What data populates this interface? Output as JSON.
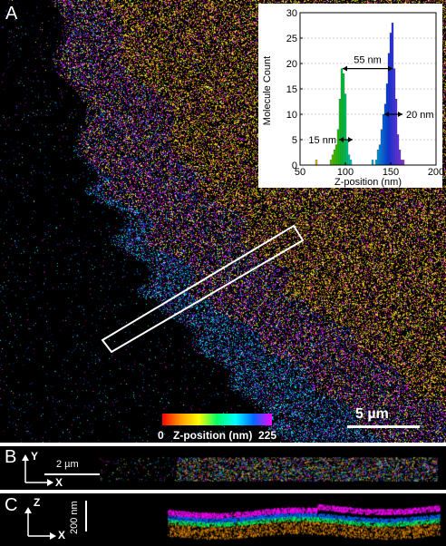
{
  "panels": {
    "a": {
      "label": "A",
      "scale_bar": "5 µm"
    },
    "b": {
      "label": "B",
      "axis_y": "Y",
      "axis_x": "X",
      "scale_bar": "2 µm"
    },
    "c": {
      "label": "C",
      "axis_z": "Z",
      "axis_x": "X",
      "scale_bar": "200 nm"
    }
  },
  "colorbar": {
    "min_label": "0",
    "title": "Z-position (nm)",
    "max_label": "225",
    "colors": [
      "#ff0000",
      "#ff9900",
      "#ffff00",
      "#00ff66",
      "#00ffff",
      "#0066ff",
      "#ff00ff"
    ]
  },
  "chart_data": {
    "type": "histogram",
    "xlabel": "Z-position (nm)",
    "ylabel": "Molecule Count",
    "xlim": [
      50,
      200
    ],
    "ylim": [
      0,
      30
    ],
    "xticks": [
      50,
      100,
      150,
      200
    ],
    "yticks": [
      0,
      5,
      10,
      15,
      20,
      25,
      30
    ],
    "bins": [
      {
        "x": 68,
        "value": 1,
        "color": "#e6b800"
      },
      {
        "x": 84,
        "value": 1,
        "color": "#66cc00"
      },
      {
        "x": 86,
        "value": 2,
        "color": "#55cc00"
      },
      {
        "x": 88,
        "value": 3,
        "color": "#44cc00"
      },
      {
        "x": 90,
        "value": 4,
        "color": "#33cc00"
      },
      {
        "x": 92,
        "value": 7,
        "color": "#22cc11"
      },
      {
        "x": 94,
        "value": 13,
        "color": "#11cc22"
      },
      {
        "x": 96,
        "value": 19,
        "color": "#00cc33"
      },
      {
        "x": 98,
        "value": 18,
        "color": "#00cc44"
      },
      {
        "x": 100,
        "value": 14,
        "color": "#00cc66"
      },
      {
        "x": 102,
        "value": 5,
        "color": "#00cc88"
      },
      {
        "x": 104,
        "value": 2,
        "color": "#00ccaa"
      },
      {
        "x": 106,
        "value": 1,
        "color": "#00cccc"
      },
      {
        "x": 130,
        "value": 1,
        "color": "#00bbdd"
      },
      {
        "x": 134,
        "value": 1,
        "color": "#00aadd"
      },
      {
        "x": 136,
        "value": 3,
        "color": "#0099dd"
      },
      {
        "x": 138,
        "value": 4,
        "color": "#0088ee"
      },
      {
        "x": 140,
        "value": 7,
        "color": "#0077ee"
      },
      {
        "x": 142,
        "value": 10,
        "color": "#0066ee"
      },
      {
        "x": 144,
        "value": 12,
        "color": "#0055ee"
      },
      {
        "x": 146,
        "value": 16,
        "color": "#0044ee"
      },
      {
        "x": 148,
        "value": 22,
        "color": "#1133ee"
      },
      {
        "x": 150,
        "value": 26,
        "color": "#2233ee"
      },
      {
        "x": 152,
        "value": 28,
        "color": "#3333ee"
      },
      {
        "x": 154,
        "value": 19,
        "color": "#4433ee"
      },
      {
        "x": 156,
        "value": 13,
        "color": "#5533ee"
      },
      {
        "x": 158,
        "value": 6,
        "color": "#6633ee"
      },
      {
        "x": 160,
        "value": 3,
        "color": "#7733dd"
      },
      {
        "x": 162,
        "value": 1,
        "color": "#8833dd"
      },
      {
        "x": 164,
        "value": 1,
        "color": "#9933dd"
      }
    ],
    "annotations": [
      {
        "text": "55 nm",
        "x_from": 97,
        "x_to": 152,
        "y": 19
      },
      {
        "text": "20 nm",
        "x_from": 143,
        "x_to": 163,
        "y": 10
      },
      {
        "text": "15 nm",
        "x_from": 93,
        "x_to": 108,
        "y": 5
      }
    ]
  }
}
